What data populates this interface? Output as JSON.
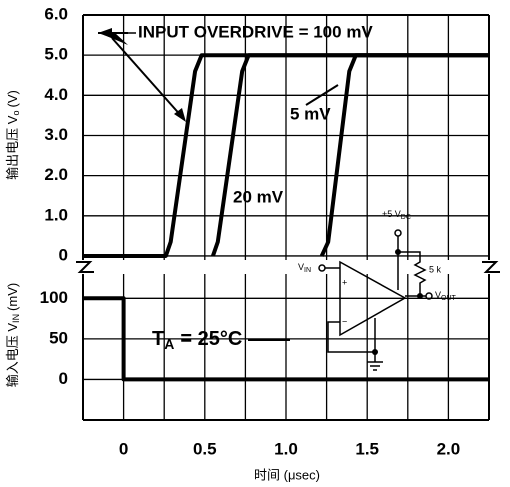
{
  "chart_data": [
    {
      "type": "line",
      "ylabel": {
        "main": "输出电压 V",
        "sub": "o",
        "unit": "(V)"
      },
      "ylim": [
        -0.25,
        6
      ],
      "yticks": [
        0,
        {
          "value": 1,
          "label": "1.0"
        },
        {
          "value": 2,
          "label": "2.0"
        },
        {
          "value": 3,
          "label": "3.0"
        },
        {
          "value": 4,
          "label": "4.0"
        },
        {
          "value": 5,
          "label": "5.0"
        },
        {
          "value": 6,
          "label": "6.0"
        }
      ],
      "grid": true,
      "series": [
        {
          "name": "100 mV",
          "color": "#000000",
          "x": [
            -0.25,
            0.26,
            0.29,
            0.44,
            0.48,
            2.25
          ],
          "values": [
            0,
            0,
            0.35,
            4.6,
            5,
            5
          ]
        },
        {
          "name": "20 mV",
          "color": "#000000",
          "x": [
            0.55,
            0.58,
            0.73,
            0.77,
            2.25
          ],
          "values": [
            0,
            0.35,
            4.6,
            5,
            5
          ]
        },
        {
          "name": "5 mV",
          "color": "#000000",
          "x": [
            1.22,
            1.26,
            1.39,
            1.43,
            2.25
          ],
          "values": [
            0,
            0.35,
            4.6,
            5,
            5
          ]
        }
      ],
      "annotations": [
        "INPUT OVERDRIVE = 100 mV"
      ]
    },
    {
      "type": "line",
      "ylabel": {
        "main": "输入电压 V",
        "sub": "IN",
        "unit": "(mV)"
      },
      "xlabel": "时间 (μsec)",
      "xlim": [
        -0.25,
        2.25
      ],
      "xticks": [
        0,
        0.5,
        {
          "value": 1,
          "label": "1.0"
        },
        1.5,
        {
          "value": 2,
          "label": "2.0"
        }
      ],
      "minor_xticks": [
        -0.25,
        0.25,
        0.75,
        1.25,
        1.75,
        2.25
      ],
      "ylim": [
        -50,
        130
      ],
      "yticks": [
        0,
        50,
        100
      ],
      "grid": true,
      "series": [
        {
          "name": "VIN",
          "color": "#000000",
          "x": [
            -0.25,
            0,
            0,
            2.25
          ],
          "values": [
            100,
            100,
            0,
            0
          ]
        }
      ],
      "annotation": {
        "text": "T",
        "sub": "A",
        "rest": "= 25°C"
      },
      "circuit": [
        {
          "text": "+5 V",
          "sub": "DC"
        },
        {
          "text": "V",
          "sub": "IN"
        },
        {
          "text": "5 k"
        },
        {
          "text": "V",
          "sub": "OUT"
        }
      ]
    }
  ]
}
